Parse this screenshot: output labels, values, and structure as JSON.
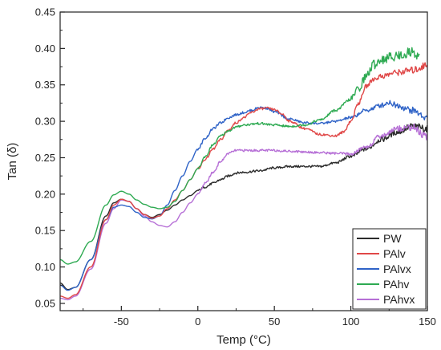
{
  "chart_data": {
    "type": "line",
    "title": "",
    "xlabel": "Temp (°C)",
    "ylabel": "Tan (δ)",
    "xlim": [
      -90,
      150
    ],
    "ylim": [
      0.04,
      0.45
    ],
    "xticks": [
      -50,
      0,
      50,
      100,
      150
    ],
    "xtick_labels": [
      "-50",
      "0",
      "50",
      "100",
      "150"
    ],
    "yticks": [
      0.05,
      0.1,
      0.15,
      0.2,
      0.25,
      0.3,
      0.35,
      0.4,
      0.45
    ],
    "ytick_labels": [
      "0.05",
      "0.10",
      "0.15",
      "0.20",
      "0.25",
      "0.30",
      "0.35",
      "0.40",
      "0.45"
    ],
    "grid": false,
    "legend_position": "bottom-right",
    "series": [
      {
        "name": "PW",
        "color": "#2b2b2b",
        "x": [
          -90,
          -85,
          -80,
          -70,
          -60,
          -55,
          -50,
          -45,
          -40,
          -35,
          -30,
          -25,
          -20,
          -15,
          -10,
          -5,
          0,
          5,
          10,
          15,
          20,
          25,
          30,
          40,
          50,
          60,
          70,
          80,
          90,
          100,
          110,
          120,
          130,
          140,
          150
        ],
        "y": [
          0.078,
          0.069,
          0.072,
          0.11,
          0.17,
          0.188,
          0.193,
          0.19,
          0.18,
          0.172,
          0.168,
          0.172,
          0.178,
          0.185,
          0.192,
          0.198,
          0.205,
          0.21,
          0.215,
          0.22,
          0.225,
          0.229,
          0.23,
          0.232,
          0.236,
          0.238,
          0.238,
          0.238,
          0.243,
          0.252,
          0.262,
          0.275,
          0.285,
          0.293,
          0.29
        ]
      },
      {
        "name": "PAlv",
        "color": "#e04848",
        "x": [
          -90,
          -85,
          -80,
          -70,
          -60,
          -55,
          -50,
          -45,
          -40,
          -35,
          -30,
          -25,
          -20,
          -15,
          -10,
          -5,
          0,
          5,
          10,
          15,
          20,
          25,
          30,
          35,
          40,
          45,
          50,
          55,
          60,
          70,
          80,
          90,
          95,
          100,
          105,
          110,
          115,
          120,
          130,
          140,
          150
        ],
        "y": [
          0.06,
          0.057,
          0.062,
          0.1,
          0.165,
          0.185,
          0.193,
          0.19,
          0.18,
          0.172,
          0.167,
          0.17,
          0.18,
          0.192,
          0.205,
          0.22,
          0.235,
          0.248,
          0.262,
          0.275,
          0.288,
          0.298,
          0.305,
          0.312,
          0.317,
          0.318,
          0.316,
          0.31,
          0.3,
          0.29,
          0.282,
          0.28,
          0.285,
          0.3,
          0.325,
          0.348,
          0.358,
          0.362,
          0.367,
          0.37,
          0.377
        ]
      },
      {
        "name": "PAlvx",
        "color": "#2f63c7",
        "x": [
          -90,
          -85,
          -80,
          -70,
          -60,
          -55,
          -50,
          -45,
          -40,
          -35,
          -30,
          -25,
          -20,
          -15,
          -10,
          -5,
          0,
          5,
          10,
          15,
          20,
          25,
          30,
          35,
          40,
          45,
          50,
          60,
          70,
          80,
          90,
          100,
          110,
          120,
          125,
          130,
          140,
          150
        ],
        "y": [
          0.075,
          0.068,
          0.072,
          0.11,
          0.165,
          0.182,
          0.185,
          0.183,
          0.175,
          0.168,
          0.166,
          0.17,
          0.185,
          0.205,
          0.225,
          0.245,
          0.262,
          0.277,
          0.29,
          0.298,
          0.305,
          0.309,
          0.312,
          0.315,
          0.319,
          0.318,
          0.313,
          0.303,
          0.298,
          0.297,
          0.3,
          0.305,
          0.315,
          0.322,
          0.326,
          0.322,
          0.315,
          0.305
        ]
      },
      {
        "name": "PAhv",
        "color": "#2eaa52",
        "x": [
          -90,
          -85,
          -80,
          -70,
          -60,
          -55,
          -50,
          -45,
          -40,
          -35,
          -30,
          -25,
          -20,
          -15,
          -10,
          -5,
          0,
          5,
          10,
          15,
          20,
          25,
          30,
          40,
          50,
          60,
          70,
          80,
          90,
          100,
          105,
          110,
          115,
          120,
          130,
          140,
          145
        ],
        "y": [
          0.11,
          0.104,
          0.107,
          0.135,
          0.185,
          0.199,
          0.204,
          0.2,
          0.192,
          0.186,
          0.182,
          0.18,
          0.182,
          0.19,
          0.205,
          0.22,
          0.235,
          0.252,
          0.268,
          0.28,
          0.287,
          0.292,
          0.295,
          0.297,
          0.295,
          0.293,
          0.295,
          0.302,
          0.315,
          0.33,
          0.345,
          0.362,
          0.378,
          0.385,
          0.39,
          0.395,
          0.39
        ]
      },
      {
        "name": "PAhvx",
        "color": "#b66fd6",
        "x": [
          -90,
          -85,
          -80,
          -70,
          -60,
          -55,
          -50,
          -45,
          -40,
          -35,
          -30,
          -25,
          -20,
          -15,
          -10,
          -5,
          0,
          5,
          10,
          15,
          20,
          25,
          30,
          40,
          50,
          60,
          70,
          80,
          90,
          100,
          110,
          120,
          130,
          140,
          150
        ],
        "y": [
          0.057,
          0.055,
          0.06,
          0.097,
          0.16,
          0.18,
          0.192,
          0.19,
          0.18,
          0.17,
          0.162,
          0.157,
          0.155,
          0.162,
          0.175,
          0.188,
          0.2,
          0.215,
          0.23,
          0.245,
          0.256,
          0.26,
          0.26,
          0.26,
          0.26,
          0.259,
          0.258,
          0.257,
          0.256,
          0.255,
          0.265,
          0.28,
          0.29,
          0.292,
          0.278
        ]
      }
    ]
  }
}
